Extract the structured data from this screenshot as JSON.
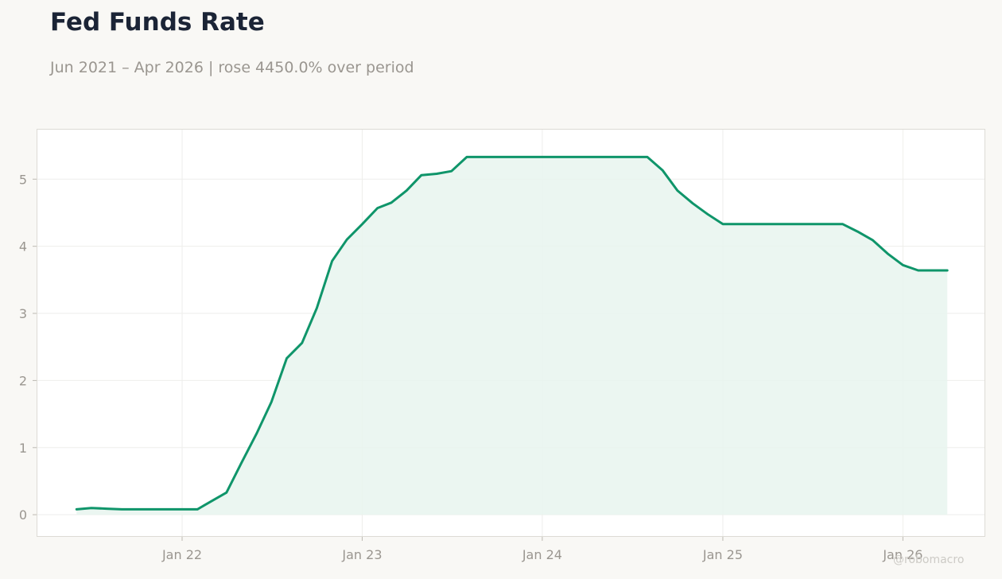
{
  "title": "Fed Funds Rate",
  "subtitle": "Jun 2021 – Apr 2026 | rose 4450.0% over period",
  "watermark": "@robomacro",
  "colors": {
    "line": "#0f956a",
    "fill": "#e7f4ef",
    "background": "#f9f8f5",
    "plot_background": "#ffffff",
    "grid": "#eeeeeb",
    "text": "#9a9690",
    "title": "#1b2436"
  },
  "chart_data": {
    "type": "area",
    "title": "Fed Funds Rate",
    "subtitle": "Jun 2021 – Apr 2026 | rose 4450.0% over period",
    "xlabel": "",
    "ylabel": "",
    "ylim": [
      -0.33,
      5.75
    ],
    "xlim": [
      "2021-03-12",
      "2026-06-17"
    ],
    "grid": true,
    "x_ticks": [
      "2022-01-01",
      "2023-01-01",
      "2024-01-01",
      "2025-01-01",
      "2026-01-01"
    ],
    "x_tick_labels": [
      "Jan 22",
      "Jan 23",
      "Jan 24",
      "Jan 25",
      "Jan 26"
    ],
    "y_ticks": [
      0,
      1,
      2,
      3,
      4,
      5
    ],
    "y_tick_labels": [
      "0",
      "1",
      "2",
      "3",
      "4",
      "5"
    ],
    "series": [
      {
        "x": [
          "2021-06-01",
          "2021-07-01",
          "2021-08-01",
          "2021-09-01",
          "2021-10-01",
          "2021-11-01",
          "2021-12-01",
          "2022-01-01",
          "2022-02-01",
          "2022-03-01",
          "2022-04-01",
          "2022-05-01",
          "2022-06-01",
          "2022-07-01",
          "2022-08-01",
          "2022-09-01",
          "2022-10-01",
          "2022-11-01",
          "2022-12-01",
          "2023-01-01",
          "2023-02-01",
          "2023-03-01",
          "2023-04-01",
          "2023-05-01",
          "2023-06-01",
          "2023-07-01",
          "2023-08-01",
          "2023-09-01",
          "2023-10-01",
          "2023-11-01",
          "2023-12-01",
          "2024-01-01",
          "2024-02-01",
          "2024-03-01",
          "2024-04-01",
          "2024-05-01",
          "2024-06-01",
          "2024-07-01",
          "2024-08-01",
          "2024-09-01",
          "2024-10-01",
          "2024-11-01",
          "2024-12-01",
          "2025-01-01",
          "2025-02-01",
          "2025-03-01",
          "2025-04-01",
          "2025-05-01",
          "2025-06-01",
          "2025-07-01",
          "2025-08-01",
          "2025-09-01",
          "2025-10-01",
          "2025-11-01",
          "2025-12-01",
          "2026-01-01",
          "2026-02-01",
          "2026-03-01",
          "2026-04-01"
        ],
        "values": [
          0.08,
          0.1,
          0.09,
          0.08,
          0.08,
          0.08,
          0.08,
          0.08,
          0.08,
          0.2,
          0.33,
          0.77,
          1.21,
          1.68,
          2.33,
          2.56,
          3.08,
          3.78,
          4.1,
          4.33,
          4.57,
          4.65,
          4.83,
          5.06,
          5.08,
          5.12,
          5.33,
          5.33,
          5.33,
          5.33,
          5.33,
          5.33,
          5.33,
          5.33,
          5.33,
          5.33,
          5.33,
          5.33,
          5.33,
          5.13,
          4.83,
          4.64,
          4.48,
          4.33,
          4.33,
          4.33,
          4.33,
          4.33,
          4.33,
          4.33,
          4.33,
          4.33,
          4.22,
          4.09,
          3.89,
          3.72,
          3.64,
          3.64,
          3.64
        ]
      }
    ]
  }
}
